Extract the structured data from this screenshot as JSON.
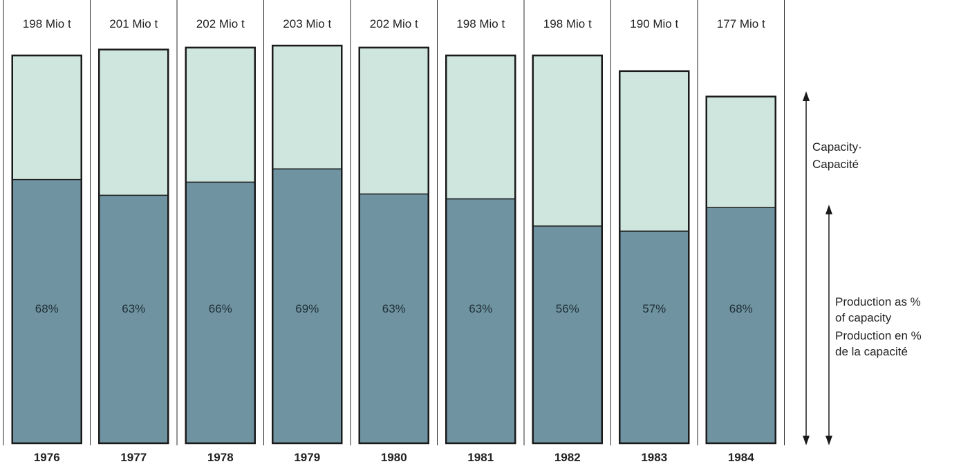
{
  "chart_data": {
    "type": "bar",
    "categories": [
      "1976",
      "1977",
      "1978",
      "1979",
      "1980",
      "1981",
      "1982",
      "1983",
      "1984"
    ],
    "capacity_labels": [
      "198 Mio t",
      "201 Mio t",
      "202 Mio t",
      "203 Mio t",
      "202 Mio t",
      "198 Mio t",
      "198 Mio t",
      "190 Mio t",
      "177 Mio t"
    ],
    "capacity": [
      198,
      201,
      202,
      203,
      202,
      198,
      198,
      190,
      177
    ],
    "production_pct": [
      68,
      63,
      66,
      69,
      63,
      63,
      56,
      57,
      68
    ],
    "pct_labels": [
      "68%",
      "63%",
      "66%",
      "69%",
      "63%",
      "63%",
      "56%",
      "57%",
      "68%"
    ],
    "legend": {
      "capacity_lines": [
        "Capacity·",
        "Capacité"
      ],
      "production_lines": [
        "Production as %",
        "of capacity",
        "Production en %",
        "de la capacité"
      ]
    },
    "colors": {
      "capacity_fill": "#cfe6df",
      "production_fill": "#6f93a0",
      "outline": "#1a1a1a"
    }
  }
}
